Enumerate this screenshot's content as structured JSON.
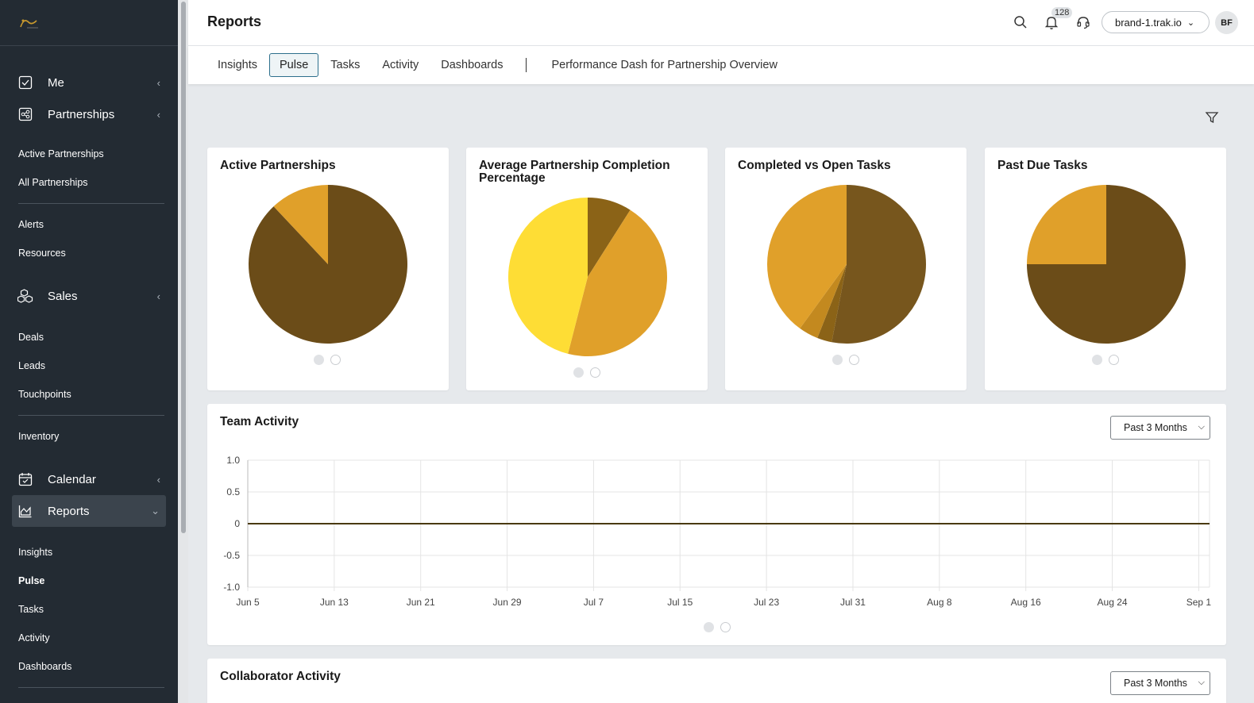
{
  "sidebar": {
    "sections": {
      "me": "Me",
      "partnerships": "Partnerships",
      "sales": "Sales",
      "calendar": "Calendar",
      "reports": "Reports"
    },
    "items": {
      "active_partnerships": "Active Partnerships",
      "all_partnerships": "All Partnerships",
      "alerts": "Alerts",
      "resources": "Resources",
      "deals": "Deals",
      "leads": "Leads",
      "touchpoints": "Touchpoints",
      "inventory": "Inventory",
      "insights": "Insights",
      "pulse": "Pulse",
      "tasks": "Tasks",
      "activity": "Activity",
      "dashboards": "Dashboards"
    }
  },
  "header": {
    "title": "Reports",
    "notification_count": "128",
    "domain": "brand-1.trak.io",
    "avatar_initials": "BF"
  },
  "tabs": [
    "Insights",
    "Pulse",
    "Tasks",
    "Activity",
    "Dashboards"
  ],
  "active_tab": "Pulse",
  "dashboard_link": "Performance Dash for Partnership Overview",
  "colors": {
    "dark_brown": "#6b4c18",
    "brown": "#77561d",
    "mid_brown": "#8b6317",
    "gold": "#e0a02a",
    "dark_gold": "#c3891f",
    "yellow": "#fedd35",
    "line": "#4a3a10"
  },
  "cards": [
    {
      "title": "Active Partnerships"
    },
    {
      "title": "Average Partnership Completion Percentage"
    },
    {
      "title": "Completed vs Open Tasks"
    },
    {
      "title": "Past Due Tasks"
    }
  ],
  "team_activity": {
    "title": "Team Activity",
    "range": "Past 3 Months"
  },
  "collaborator_activity": {
    "title": "Collaborator Activity",
    "range": "Past 3 Months"
  },
  "chart_data": [
    {
      "type": "pie",
      "title": "Active Partnerships",
      "series": [
        {
          "values": [
            88,
            12
          ]
        }
      ],
      "colors": [
        "#6b4c18",
        "#e0a02a"
      ]
    },
    {
      "type": "pie",
      "title": "Average Partnership Completion Percentage",
      "series": [
        {
          "values": [
            9,
            45,
            46
          ]
        }
      ],
      "colors": [
        "#8b6317",
        "#e0a02a",
        "#fedd35"
      ]
    },
    {
      "type": "pie",
      "title": "Completed vs Open Tasks",
      "series": [
        {
          "values": [
            53,
            3,
            4,
            40
          ]
        }
      ],
      "colors": [
        "#77561d",
        "#8b6317",
        "#c3891f",
        "#e0a02a"
      ]
    },
    {
      "type": "pie",
      "title": "Past Due Tasks",
      "series": [
        {
          "values": [
            75,
            25
          ]
        }
      ],
      "colors": [
        "#6b4c18",
        "#e0a02a"
      ]
    },
    {
      "type": "line",
      "title": "Team Activity",
      "x": [
        "Jun 5",
        "Jun 13",
        "Jun 21",
        "Jun 29",
        "Jul 7",
        "Jul 15",
        "Jul 23",
        "Jul 31",
        "Aug 8",
        "Aug 16",
        "Aug 24",
        "Sep 1"
      ],
      "yticks": [
        "1.0",
        "0.5",
        "0",
        "-0.5",
        "-1.0"
      ],
      "ylim": [
        -1,
        1
      ],
      "series": [
        {
          "values": [
            0,
            0,
            0,
            0,
            0,
            0,
            0,
            0,
            0,
            0,
            0,
            0
          ]
        }
      ],
      "grid": true
    }
  ]
}
